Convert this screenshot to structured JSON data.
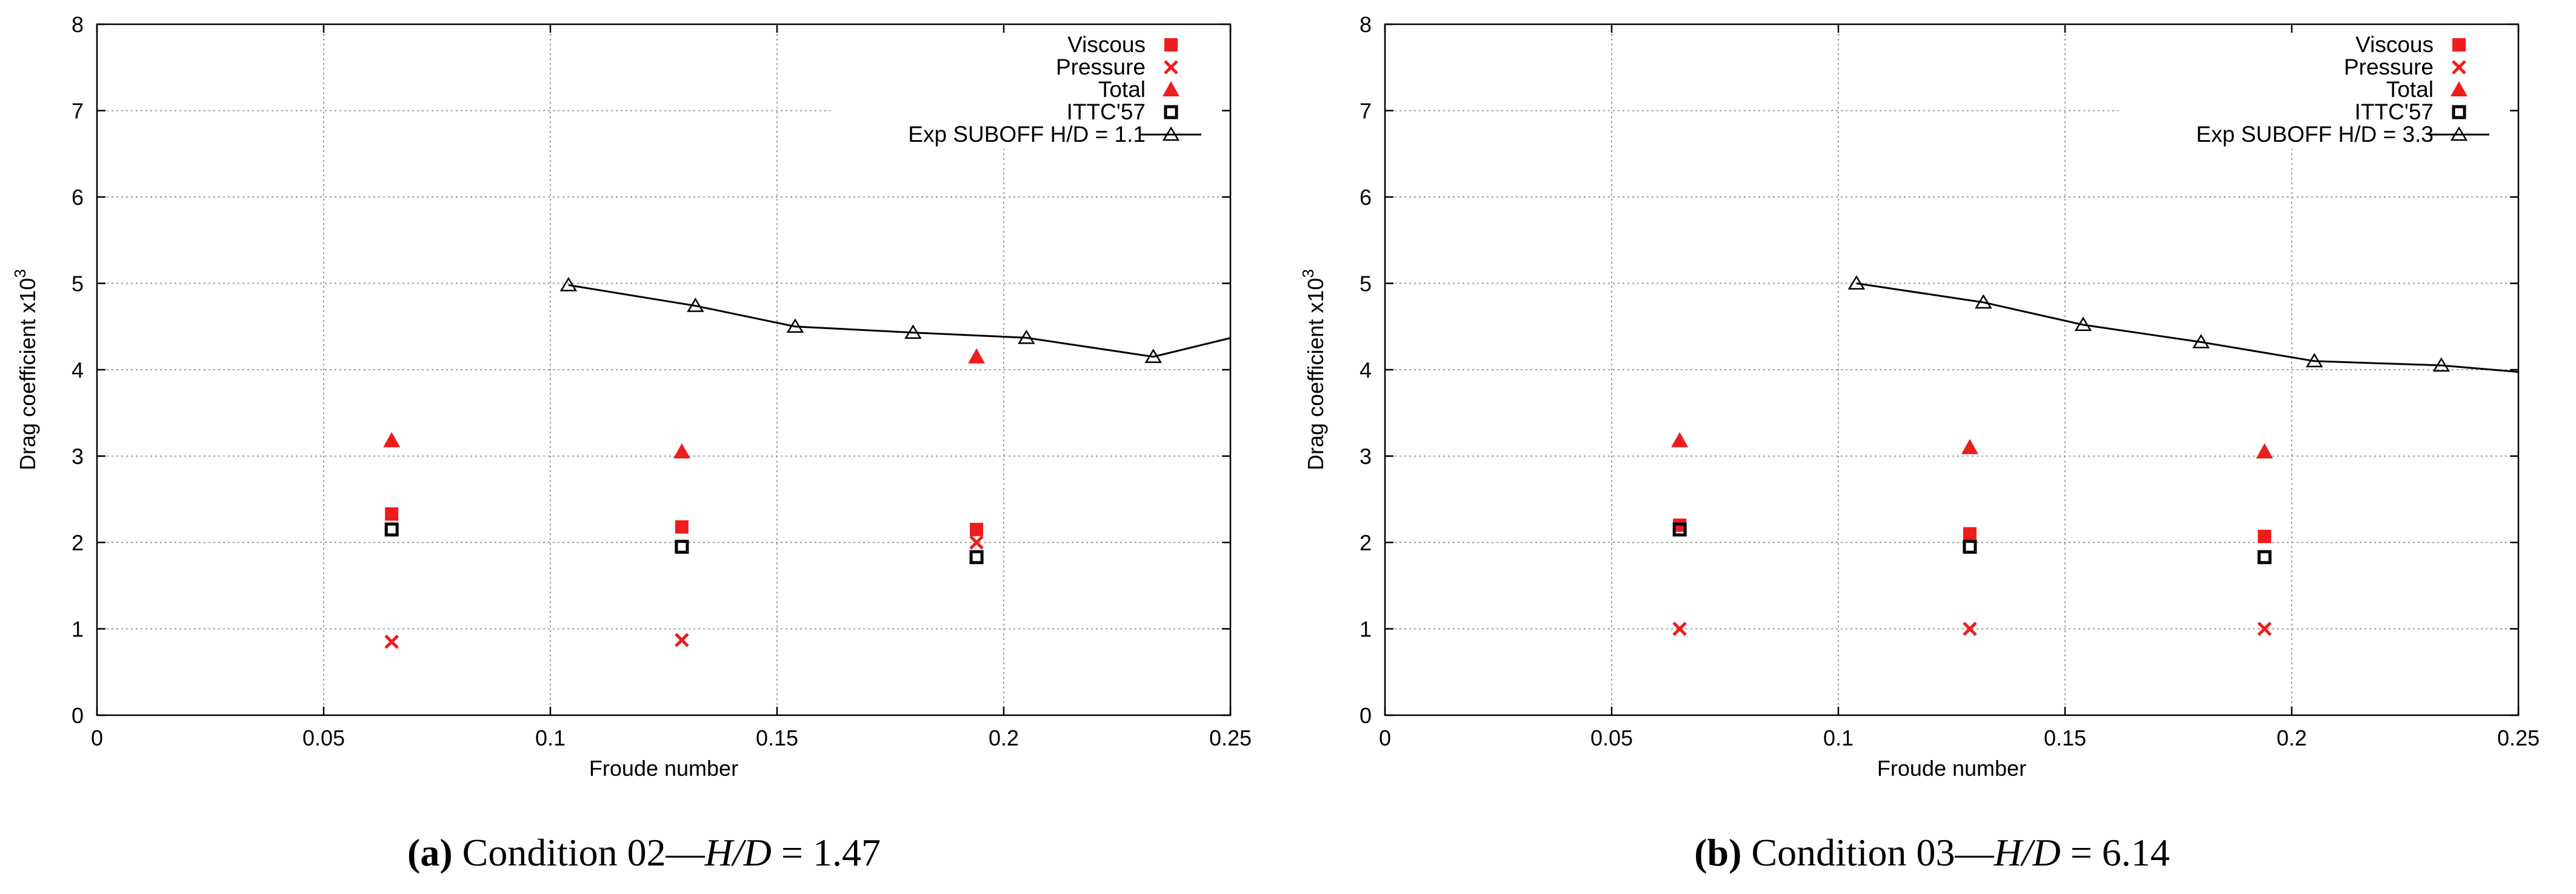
{
  "chart_data": [
    {
      "type": "scatter",
      "id": "a",
      "xlabel": "Froude number",
      "ylabel": "Drag coefficient x10",
      "ylabel_sup": "3",
      "xlim": [
        0,
        0.25
      ],
      "ylim": [
        0,
        8
      ],
      "xticks": [
        0,
        0.05,
        0.1,
        0.15,
        0.2,
        0.25
      ],
      "xtick_labels": [
        "0",
        "0.05",
        "0.1",
        "0.15",
        "0.2",
        "0.25"
      ],
      "yticks": [
        0,
        1,
        2,
        3,
        4,
        5,
        6,
        7,
        8
      ],
      "ytick_labels": [
        "0",
        "1",
        "2",
        "3",
        "4",
        "5",
        "6",
        "7",
        "8"
      ],
      "grid": true,
      "legend_position": "top-right",
      "series": [
        {
          "name": "Viscous",
          "marker": "filled-square",
          "color": "#ee1c1c",
          "x": [
            0.065,
            0.129,
            0.194
          ],
          "y": [
            2.33,
            2.18,
            2.15
          ]
        },
        {
          "name": "Pressure",
          "marker": "cross",
          "color": "#ee1c1c",
          "x": [
            0.065,
            0.129,
            0.194
          ],
          "y": [
            0.85,
            0.87,
            2.0
          ]
        },
        {
          "name": "Total",
          "marker": "filled-triangle",
          "color": "#ee1c1c",
          "x": [
            0.065,
            0.129,
            0.194
          ],
          "y": [
            3.18,
            3.05,
            4.15
          ]
        },
        {
          "name": "ITTC'57",
          "marker": "open-square",
          "color": "#000000",
          "x": [
            0.065,
            0.129,
            0.194
          ],
          "y": [
            2.15,
            1.95,
            1.83
          ]
        },
        {
          "name": "Exp SUBOFF H/D = 1.1",
          "marker": "open-triangle-line",
          "color": "#000000",
          "x": [
            0.104,
            0.132,
            0.154,
            0.18,
            0.205,
            0.233,
            0.251
          ],
          "y": [
            4.98,
            4.74,
            4.5,
            4.43,
            4.37,
            4.15,
            4.38
          ],
          "marker_count": 6
        }
      ],
      "caption": {
        "label": "(a)",
        "text": " Condition 02—",
        "italic": "H/D",
        "value": " = 1.47"
      }
    },
    {
      "type": "scatter",
      "id": "b",
      "xlabel": "Froude number",
      "ylabel": "Drag coefficient x10",
      "ylabel_sup": "3",
      "xlim": [
        0,
        0.25
      ],
      "ylim": [
        0,
        8
      ],
      "xticks": [
        0,
        0.05,
        0.1,
        0.15,
        0.2,
        0.25
      ],
      "xtick_labels": [
        "0",
        "0.05",
        "0.1",
        "0.15",
        "0.2",
        "0.25"
      ],
      "yticks": [
        0,
        1,
        2,
        3,
        4,
        5,
        6,
        7,
        8
      ],
      "ytick_labels": [
        "0",
        "1",
        "2",
        "3",
        "4",
        "5",
        "6",
        "7",
        "8"
      ],
      "grid": true,
      "legend_position": "top-right",
      "series": [
        {
          "name": "Viscous",
          "marker": "filled-square",
          "color": "#ee1c1c",
          "x": [
            0.065,
            0.129,
            0.194
          ],
          "y": [
            2.2,
            2.1,
            2.07
          ]
        },
        {
          "name": "Pressure",
          "marker": "cross",
          "color": "#ee1c1c",
          "x": [
            0.065,
            0.129,
            0.194
          ],
          "y": [
            1.0,
            1.0,
            1.0
          ]
        },
        {
          "name": "Total",
          "marker": "filled-triangle",
          "color": "#ee1c1c",
          "x": [
            0.065,
            0.129,
            0.194
          ],
          "y": [
            3.18,
            3.1,
            3.05
          ]
        },
        {
          "name": "ITTC'57",
          "marker": "open-square",
          "color": "#000000",
          "x": [
            0.065,
            0.129,
            0.194
          ],
          "y": [
            2.15,
            1.95,
            1.83
          ]
        },
        {
          "name": "Exp SUBOFF H/D = 3.3",
          "marker": "open-triangle-line",
          "color": "#000000",
          "x": [
            0.104,
            0.132,
            0.154,
            0.18,
            0.205,
            0.233,
            0.251
          ],
          "y": [
            5.0,
            4.78,
            4.52,
            4.32,
            4.1,
            4.05,
            3.97
          ],
          "marker_count": 6
        }
      ],
      "caption": {
        "label": "(b)",
        "text": " Condition 03—",
        "italic": "H/D",
        "value": " = 6.14"
      }
    }
  ]
}
